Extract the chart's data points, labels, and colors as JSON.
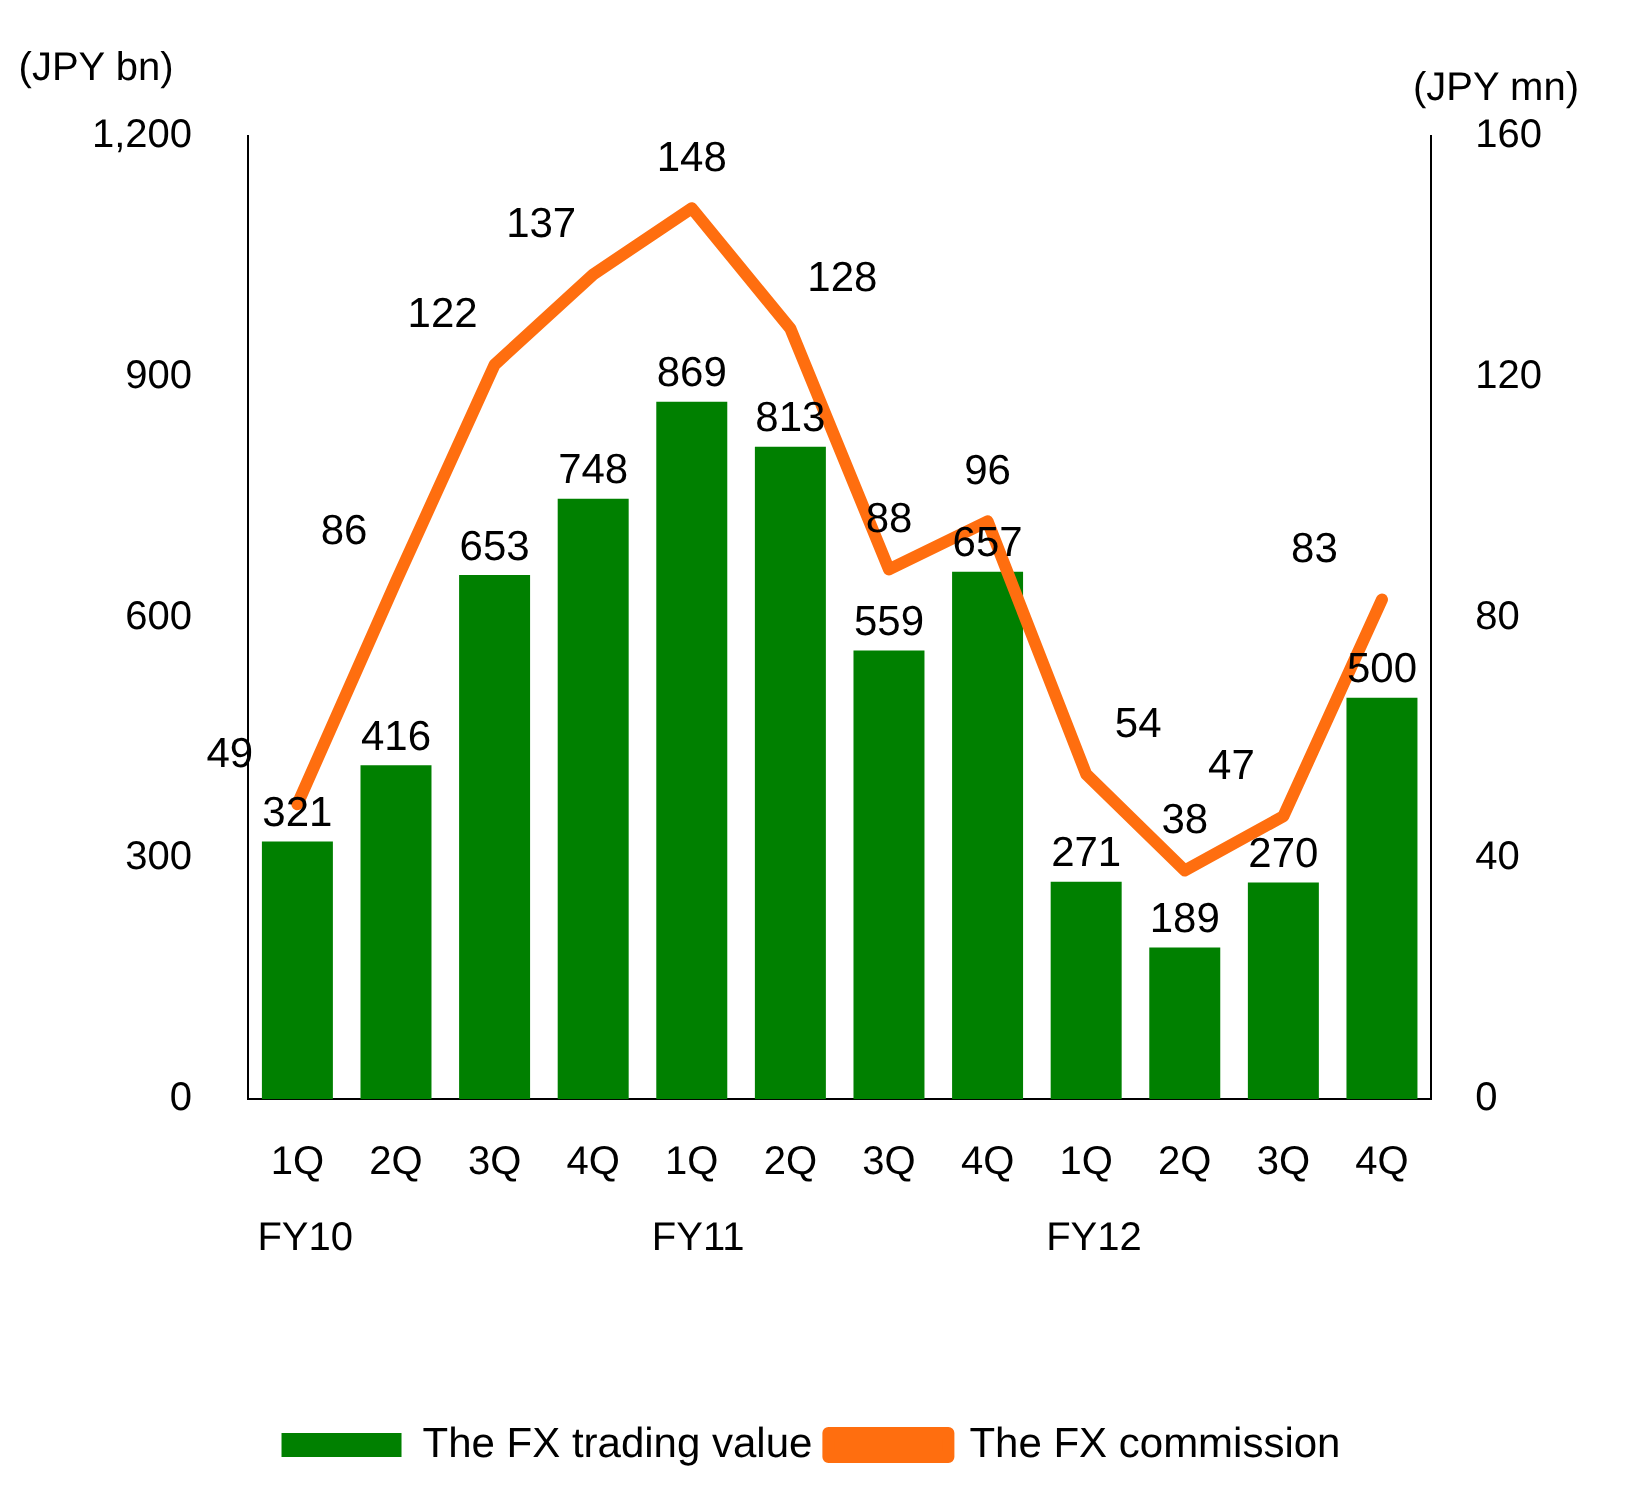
{
  "chart_data": {
    "type": "bar",
    "ylabel": "(JPY bn)",
    "y2label": "(JPY mn)",
    "categories": [
      "1Q\nFY10",
      "2Q",
      "3Q",
      "4Q",
      "1Q\nFY11",
      "2Q",
      "3Q",
      "4Q",
      "1Q\nFY12",
      "2Q",
      "3Q",
      "4Q"
    ],
    "series": [
      {
        "name": "The FX trading value",
        "color": "#008000",
        "values": [
          321,
          416,
          653,
          748,
          869,
          813,
          559,
          657,
          271,
          189,
          270,
          500
        ]
      },
      {
        "name": "The FX commission",
        "type": "line",
        "axis": "y2",
        "color": "#ff6e0f",
        "values": [
          49,
          86,
          122,
          137,
          148,
          128,
          88,
          96,
          54,
          38,
          47,
          83
        ]
      }
    ],
    "ylim": [
      0,
      1200
    ],
    "yticks": [
      0,
      300,
      600,
      900,
      {
        "value": 1200,
        "label": "1,200"
      }
    ],
    "y2lim": [
      0,
      160
    ],
    "y2ticks": [
      0,
      40,
      80,
      120,
      160
    ],
    "data_labels": true,
    "grid": false,
    "legend": "bottom",
    "marker": "none"
  }
}
